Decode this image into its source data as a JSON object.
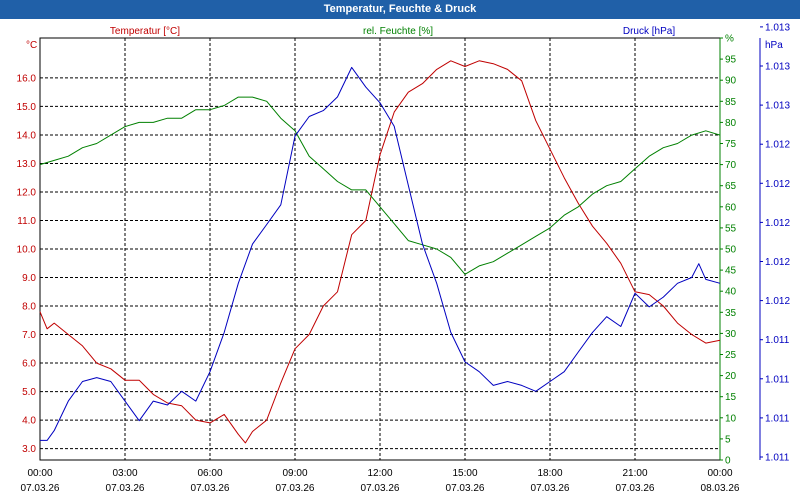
{
  "window": {
    "title": "Temperatur, Feuchte & Druck"
  },
  "chart_data": {
    "type": "line",
    "title": "Temperatur, Feuchte & Druck",
    "x_hours": [
      0,
      3,
      6,
      9,
      12,
      15,
      18,
      21,
      24
    ],
    "x_tick_times": [
      "00:00",
      "03:00",
      "06:00",
      "09:00",
      "12:00",
      "15:00",
      "18:00",
      "21:00",
      "00:00"
    ],
    "x_tick_dates": [
      "07.03.26",
      "07.03.26",
      "07.03.26",
      "07.03.26",
      "07.03.26",
      "07.03.26",
      "07.03.26",
      "07.03.26",
      "08.03.26"
    ],
    "xlim": [
      0,
      24
    ],
    "grid": true,
    "axes": {
      "temperature": {
        "unit_label": "°C",
        "legend": "Temperatur [°C]",
        "color": "#c00000",
        "ylim": [
          2.6,
          17.4
        ],
        "ticks": [
          "3.0",
          "4.0",
          "5.0",
          "6.0",
          "7.0",
          "8.0",
          "9.0",
          "10.0",
          "11.0",
          "12.0",
          "13.0",
          "14.0",
          "15.0",
          "16.0"
        ]
      },
      "humidity": {
        "unit_label": "%",
        "legend": "rel. Feuchte [%]",
        "color": "#008000",
        "ylim": [
          0,
          100
        ],
        "ticks": [
          "0",
          "5",
          "10",
          "15",
          "20",
          "25",
          "30",
          "35",
          "40",
          "45",
          "50",
          "55",
          "60",
          "65",
          "70",
          "75",
          "80",
          "85",
          "90",
          "95",
          "%"
        ]
      },
      "pressure": {
        "unit_label": "hPa",
        "legend": "Druck [hPa]",
        "color": "#0000c0",
        "ylim": [
          1011,
          1013.15
        ],
        "ticks": [
          "1.011",
          "1.011",
          "1.011",
          "1.011",
          "1.012",
          "1.012",
          "1.012",
          "1.012",
          "1.012",
          "1.013",
          "1.013",
          "1.013"
        ]
      }
    },
    "series": [
      {
        "name": "Temperatur",
        "axis": "temperature",
        "x": [
          0,
          0.25,
          0.5,
          1,
          1.5,
          2,
          2.5,
          3,
          3.5,
          4,
          4.5,
          5,
          5.5,
          6,
          6.5,
          7,
          7.25,
          7.5,
          8,
          8.5,
          9,
          9.5,
          10,
          10.5,
          11,
          11.5,
          12,
          12.5,
          13,
          13.5,
          14,
          14.5,
          15,
          15.5,
          16,
          16.5,
          17,
          17.5,
          18,
          18.5,
          19,
          19.5,
          20,
          20.5,
          21,
          21.5,
          22,
          22.5,
          23,
          23.5,
          24
        ],
        "values": [
          7.8,
          7.2,
          7.4,
          7.0,
          6.6,
          6.0,
          5.8,
          5.4,
          5.4,
          4.9,
          4.6,
          4.5,
          4.0,
          3.9,
          4.2,
          3.5,
          3.2,
          3.6,
          4.0,
          5.3,
          6.5,
          7.0,
          8.0,
          8.5,
          10.5,
          11.0,
          13.3,
          14.8,
          15.5,
          15.8,
          16.3,
          16.6,
          16.4,
          16.6,
          16.5,
          16.3,
          15.9,
          14.5,
          13.5,
          12.5,
          11.6,
          10.8,
          10.2,
          9.5,
          8.5,
          8.4,
          8.0,
          7.4,
          7.0,
          6.7,
          6.8
        ]
      },
      {
        "name": "rel. Feuchte",
        "axis": "humidity",
        "x": [
          0,
          0.5,
          1,
          1.5,
          2,
          2.5,
          3,
          3.5,
          4,
          4.5,
          5,
          5.5,
          6,
          6.5,
          7,
          7.5,
          8,
          8.5,
          9,
          9.5,
          10,
          10.5,
          11,
          11.5,
          12,
          12.5,
          13,
          13.5,
          14,
          14.5,
          15,
          15.5,
          16,
          16.5,
          17,
          17.5,
          18,
          18.5,
          19,
          19.5,
          20,
          20.5,
          21,
          21.5,
          22,
          22.5,
          23,
          23.5,
          24
        ],
        "values": [
          70,
          71,
          72,
          74,
          75,
          77,
          79,
          80,
          80,
          81,
          81,
          83,
          83,
          84,
          86,
          86,
          85,
          81,
          78,
          72,
          69,
          66,
          64,
          64,
          60,
          56,
          52,
          51,
          50,
          48,
          44,
          46,
          47,
          49,
          51,
          53,
          55,
          58,
          60,
          63,
          65,
          66,
          69,
          72,
          74,
          75,
          77,
          78,
          77
        ]
      },
      {
        "name": "Druck",
        "axis": "pressure",
        "x": [
          0,
          0.25,
          0.5,
          1,
          1.5,
          2,
          2.5,
          3,
          3.5,
          4,
          4.5,
          5,
          5.5,
          6,
          6.5,
          7,
          7.5,
          8,
          8.5,
          9,
          9.5,
          10,
          10.5,
          11,
          11.5,
          12,
          12.5,
          13,
          13.5,
          14,
          14.5,
          15,
          15.5,
          16,
          16.5,
          17,
          17.5,
          18,
          18.5,
          19,
          19.5,
          20,
          20.5,
          21,
          21.5,
          22,
          22.5,
          23,
          23.25,
          23.5,
          24
        ],
        "values": [
          1011.1,
          1011.1,
          1011.15,
          1011.3,
          1011.4,
          1011.42,
          1011.4,
          1011.3,
          1011.2,
          1011.3,
          1011.28,
          1011.35,
          1011.3,
          1011.45,
          1011.65,
          1011.9,
          1012.1,
          1012.2,
          1012.3,
          1012.65,
          1012.75,
          1012.78,
          1012.85,
          1013.0,
          1012.9,
          1012.82,
          1012.7,
          1012.4,
          1012.1,
          1011.9,
          1011.65,
          1011.5,
          1011.45,
          1011.38,
          1011.4,
          1011.38,
          1011.35,
          1011.4,
          1011.45,
          1011.55,
          1011.65,
          1011.73,
          1011.68,
          1011.85,
          1011.78,
          1011.83,
          1011.9,
          1011.93,
          1012.0,
          1011.92,
          1011.9
        ]
      }
    ]
  }
}
